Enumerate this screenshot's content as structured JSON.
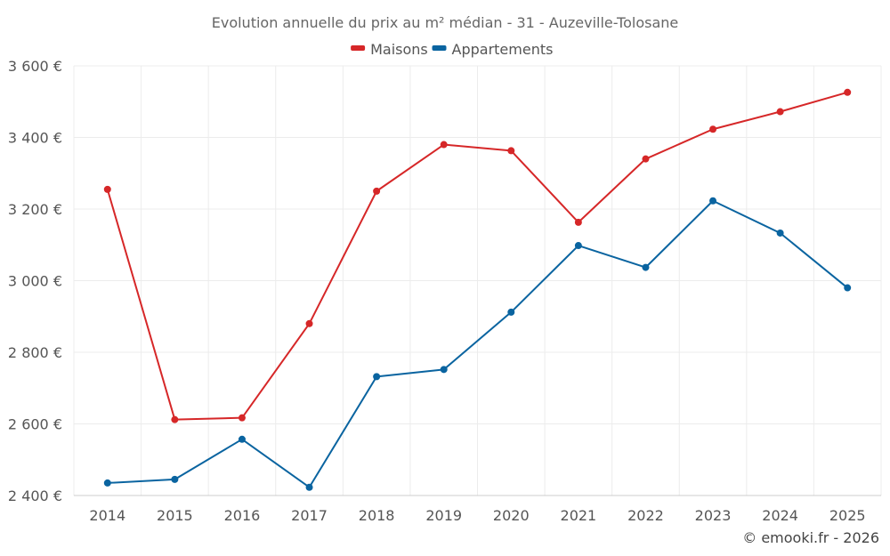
{
  "chart_data": {
    "type": "line",
    "title": "Evolution annuelle du prix au m² médian - 31 - Auzeville-Tolosane",
    "xlabel": "",
    "ylabel": "",
    "categories": [
      "2014",
      "2015",
      "2016",
      "2017",
      "2018",
      "2019",
      "2020",
      "2021",
      "2022",
      "2023",
      "2024",
      "2025"
    ],
    "ylim": [
      2400,
      3600
    ],
    "yticks": [
      2400,
      2600,
      2800,
      3000,
      3200,
      3400,
      3600
    ],
    "ytick_labels": [
      "2 400 €",
      "2 600 €",
      "2 800 €",
      "3 000 €",
      "3 200 €",
      "3 400 €",
      "3 600 €"
    ],
    "grid": true,
    "legend_position": "top-center",
    "series": [
      {
        "name": "Maisons",
        "color": "#d62728",
        "values": [
          3255,
          2612,
          2617,
          2880,
          3250,
          3380,
          3363,
          3163,
          3340,
          3423,
          3472,
          3526
        ]
      },
      {
        "name": "Appartements",
        "color": "#0a64a0",
        "values": [
          2435,
          2445,
          2557,
          2423,
          2732,
          2752,
          2912,
          3098,
          3037,
          3223,
          3133,
          2980
        ]
      }
    ]
  },
  "credit": "© emooki.fr - 2026"
}
